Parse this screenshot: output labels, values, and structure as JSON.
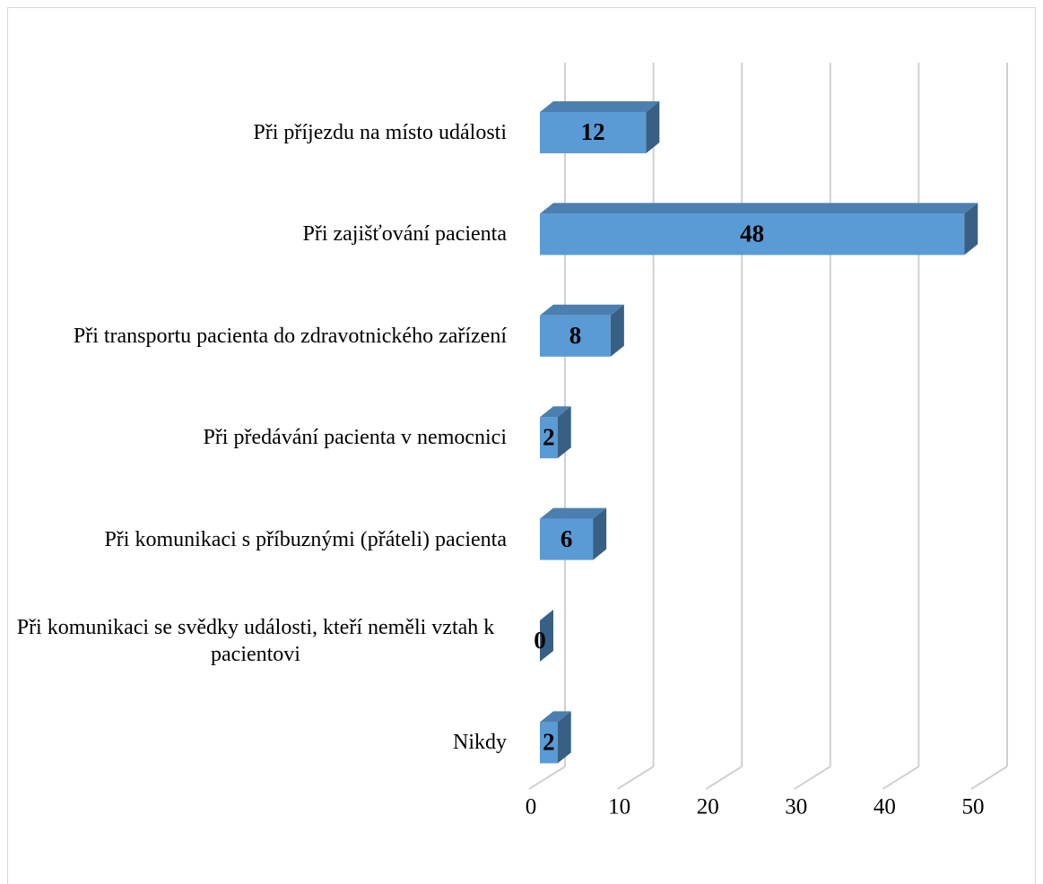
{
  "chart_data": {
    "type": "bar",
    "orientation": "horizontal",
    "categories": [
      "Při příjezdu na místo události",
      "Při zajišťování pacienta",
      "Při transportu pacienta do zdravotnického zařízení",
      "Při předávání pacienta v nemocnici",
      "Při komunikaci s příbuznými (přáteli) pacienta",
      "Při komunikaci se svědky události, kteří neměli vztah k pacientovi",
      "Nikdy"
    ],
    "values": [
      12,
      48,
      8,
      2,
      6,
      0,
      2
    ],
    "color": "#5b9bd5",
    "xlim": [
      0,
      50
    ],
    "xticks": [
      0,
      10,
      20,
      30,
      40,
      50
    ],
    "grid": true
  }
}
